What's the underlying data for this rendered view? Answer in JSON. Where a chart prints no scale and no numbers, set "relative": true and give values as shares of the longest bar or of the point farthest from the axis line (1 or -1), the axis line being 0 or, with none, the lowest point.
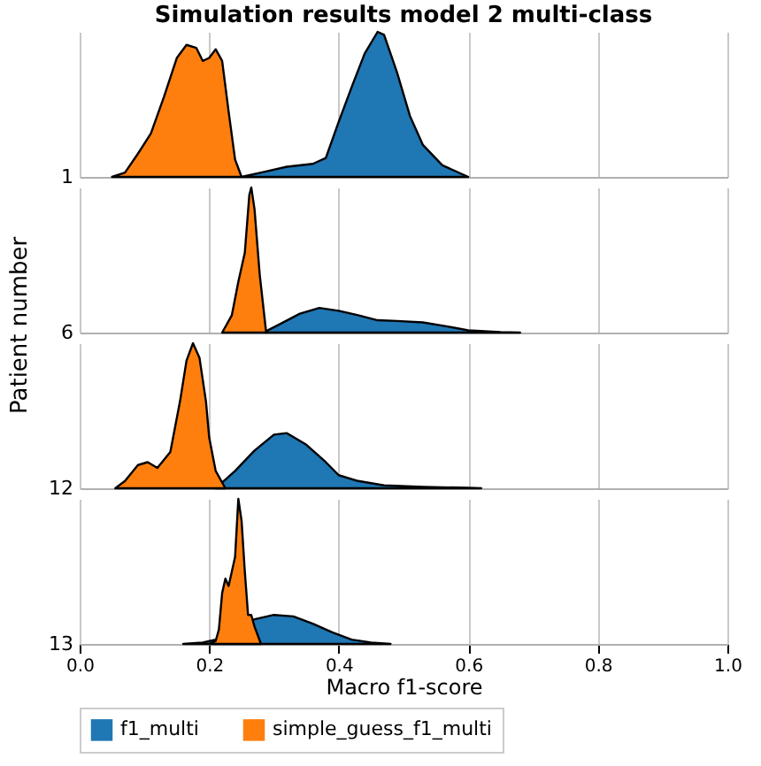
{
  "chart_data": [
    {
      "type": "area",
      "title": "Simulation results model 2 multi-class",
      "ylabel": "1",
      "annotations": [
        "Patient number"
      ],
      "relative": true,
      "xlim": [
        0,
        1
      ],
      "xticks": [
        0,
        0.2,
        0.4,
        0.6,
        0.8,
        1
      ],
      "grid": "x",
      "tick_labels": false,
      "series": [
        {
          "color": "#1f77b4",
          "x": [
            0.25,
            0.28,
            0.32,
            0.36,
            0.38,
            0.4,
            0.42,
            0.44,
            0.46,
            0.47,
            0.49,
            0.51,
            0.53,
            0.56,
            0.6
          ],
          "values": [
            0,
            0.03,
            0.07,
            0.09,
            0.13,
            0.38,
            0.62,
            0.85,
            1.0,
            0.98,
            0.72,
            0.42,
            0.22,
            0.08,
            0
          ]
        },
        {
          "color": "#ff7f0e",
          "x": [
            0.05,
            0.07,
            0.09,
            0.11,
            0.13,
            0.15,
            0.165,
            0.18,
            0.19,
            0.2,
            0.21,
            0.22,
            0.23,
            0.24,
            0.25
          ],
          "values": [
            0,
            0.03,
            0.16,
            0.3,
            0.55,
            0.82,
            0.91,
            0.89,
            0.8,
            0.82,
            0.88,
            0.8,
            0.45,
            0.12,
            0
          ]
        }
      ]
    },
    {
      "type": "area",
      "ylabel": "6",
      "relative": true,
      "xlim": [
        0,
        1
      ],
      "xticks": [
        0,
        0.2,
        0.4,
        0.6,
        0.8,
        1
      ],
      "grid": "x",
      "tick_labels": false,
      "series": [
        {
          "color": "#1f77b4",
          "x": [
            0.288,
            0.31,
            0.34,
            0.37,
            0.4,
            0.43,
            0.46,
            0.49,
            0.53,
            0.57,
            0.6,
            0.65,
            0.68
          ],
          "values": [
            0.01,
            0.06,
            0.13,
            0.17,
            0.15,
            0.12,
            0.085,
            0.08,
            0.07,
            0.04,
            0.015,
            0.003,
            0
          ]
        },
        {
          "color": "#ff7f0e",
          "x": [
            0.22,
            0.235,
            0.245,
            0.255,
            0.262,
            0.265,
            0.27,
            0.278,
            0.288
          ],
          "values": [
            0,
            0.12,
            0.35,
            0.55,
            0.95,
            1.0,
            0.85,
            0.4,
            0
          ]
        }
      ]
    },
    {
      "type": "area",
      "ylabel": "12",
      "relative": true,
      "xlim": [
        0,
        1
      ],
      "xticks": [
        0,
        0.2,
        0.4,
        0.6,
        0.8,
        1
      ],
      "grid": "x",
      "tick_labels": false,
      "series": [
        {
          "color": "#1f77b4",
          "x": [
            0.21,
            0.24,
            0.27,
            0.3,
            0.32,
            0.35,
            0.38,
            0.4,
            0.43,
            0.47,
            0.53,
            0.6,
            0.62
          ],
          "values": [
            0,
            0.12,
            0.26,
            0.37,
            0.38,
            0.3,
            0.18,
            0.09,
            0.05,
            0.02,
            0.01,
            0.003,
            0
          ]
        },
        {
          "color": "#ff7f0e",
          "x": [
            0.055,
            0.07,
            0.09,
            0.105,
            0.12,
            0.14,
            0.155,
            0.165,
            0.175,
            0.185,
            0.195,
            0.2,
            0.21,
            0.225
          ],
          "values": [
            0,
            0.05,
            0.16,
            0.18,
            0.14,
            0.25,
            0.6,
            0.88,
            1.0,
            0.9,
            0.6,
            0.35,
            0.12,
            0
          ]
        }
      ]
    },
    {
      "type": "area",
      "ylabel": "13",
      "xlabel": "Macro f1-score",
      "relative": true,
      "xlim": [
        0,
        1
      ],
      "xticks": [
        {
          "value": 0,
          "label": "0.0"
        },
        0.2,
        0.4,
        0.6,
        0.8,
        {
          "value": 1,
          "label": "1.0"
        }
      ],
      "grid": "x",
      "tick_labels": "x",
      "legend": "bottom",
      "series": [
        {
          "name": "f1_multi",
          "color": "#1f77b4",
          "x": [
            0.16,
            0.19,
            0.21,
            0.27,
            0.3,
            0.33,
            0.36,
            0.39,
            0.42,
            0.45,
            0.48
          ],
          "values": [
            0,
            0.01,
            0.03,
            0.17,
            0.2,
            0.19,
            0.14,
            0.08,
            0.03,
            0.01,
            0
          ]
        },
        {
          "name": "simple_guess_f1_multi",
          "color": "#ff7f0e",
          "x": [
            0.2,
            0.21,
            0.215,
            0.22,
            0.225,
            0.23,
            0.24,
            0.245,
            0.25,
            0.255,
            0.26,
            0.265,
            0.27,
            0.28
          ],
          "values": [
            0,
            0.02,
            0.1,
            0.35,
            0.45,
            0.4,
            0.6,
            1.0,
            0.85,
            0.5,
            0.2,
            0.2,
            0.12,
            0
          ]
        }
      ]
    }
  ]
}
